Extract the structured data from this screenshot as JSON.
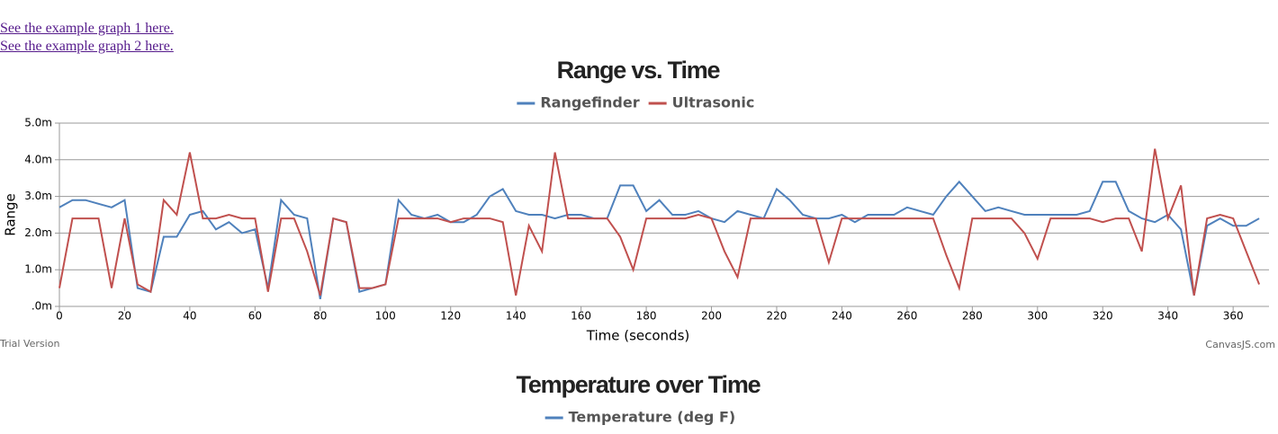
{
  "links": [
    "See the example graph 1 here.",
    "See the example graph 2 here."
  ],
  "chart_data": [
    {
      "type": "line",
      "title": "Range vs. Time",
      "x_label": "Time (seconds)",
      "y_label": "Range",
      "credit_left": "Trial Version",
      "credit_right": "CanvasJS.com",
      "xlim": [
        0,
        371
      ],
      "xticks": [
        0,
        20,
        40,
        60,
        80,
        100,
        120,
        140,
        160,
        180,
        200,
        220,
        240,
        260,
        280,
        300,
        320,
        340,
        360
      ],
      "ylim": [
        0,
        5
      ],
      "yticks": [
        {
          "value": 0,
          "label": ".0m"
        },
        {
          "value": 1,
          "label": "1.0m"
        },
        {
          "value": 2,
          "label": "2.0m"
        },
        {
          "value": 3,
          "label": "3.0m"
        },
        {
          "value": 4,
          "label": "4.0m"
        },
        {
          "value": 5,
          "label": "5.0m"
        }
      ],
      "grid": true,
      "legend": "top",
      "x": [
        0,
        4,
        8,
        12,
        16,
        20,
        24,
        28,
        32,
        36,
        40,
        44,
        48,
        52,
        56,
        60,
        64,
        68,
        72,
        76,
        80,
        84,
        88,
        92,
        96,
        100,
        104,
        108,
        112,
        116,
        120,
        124,
        128,
        132,
        136,
        140,
        144,
        148,
        152,
        156,
        160,
        164,
        168,
        172,
        176,
        180,
        184,
        188,
        192,
        196,
        200,
        204,
        208,
        212,
        216,
        220,
        224,
        228,
        232,
        236,
        240,
        244,
        248,
        252,
        256,
        260,
        264,
        268,
        272,
        276,
        280,
        284,
        288,
        292,
        296,
        300,
        304,
        308,
        312,
        316,
        320,
        324,
        328,
        332,
        336,
        340,
        344,
        348,
        352,
        356,
        360,
        364,
        368
      ],
      "series": [
        {
          "name": "Rangefinder",
          "color": "#4f81bc",
          "values": [
            2.7,
            2.9,
            2.9,
            2.8,
            2.7,
            2.9,
            0.5,
            0.4,
            1.9,
            1.9,
            2.5,
            2.6,
            2.1,
            2.3,
            2.0,
            2.1,
            0.5,
            2.9,
            2.5,
            2.4,
            0.2,
            2.4,
            2.3,
            0.4,
            0.5,
            0.6,
            2.9,
            2.5,
            2.4,
            2.5,
            2.3,
            2.3,
            2.5,
            3.0,
            3.2,
            2.6,
            2.5,
            2.5,
            2.4,
            2.5,
            2.5,
            2.4,
            2.4,
            3.3,
            3.3,
            2.6,
            2.9,
            2.5,
            2.5,
            2.6,
            2.4,
            2.3,
            2.6,
            2.5,
            2.4,
            3.2,
            2.9,
            2.5,
            2.4,
            2.4,
            2.5,
            2.3,
            2.5,
            2.5,
            2.5,
            2.7,
            2.6,
            2.5,
            3.0,
            3.4,
            3.0,
            2.6,
            2.7,
            2.6,
            2.5,
            2.5,
            2.5,
            2.5,
            2.5,
            2.6,
            3.4,
            3.4,
            2.6,
            2.4,
            2.3,
            2.5,
            2.1,
            0.3,
            2.2,
            2.4,
            2.2,
            2.2,
            2.4
          ]
        },
        {
          "name": "Ultrasonic",
          "color": "#c0504e",
          "values": [
            0.5,
            2.4,
            2.4,
            2.4,
            0.5,
            2.4,
            0.6,
            0.4,
            2.9,
            2.5,
            4.2,
            2.4,
            2.4,
            2.5,
            2.4,
            2.4,
            0.4,
            2.4,
            2.4,
            1.5,
            0.3,
            2.4,
            2.3,
            0.5,
            0.5,
            0.6,
            2.4,
            2.4,
            2.4,
            2.4,
            2.3,
            2.4,
            2.4,
            2.4,
            2.3,
            0.3,
            2.2,
            1.5,
            4.2,
            2.4,
            2.4,
            2.4,
            2.4,
            1.9,
            1.0,
            2.4,
            2.4,
            2.4,
            2.4,
            2.5,
            2.4,
            1.5,
            0.8,
            2.4,
            2.4,
            2.4,
            2.4,
            2.4,
            2.4,
            1.2,
            2.4,
            2.4,
            2.4,
            2.4,
            2.4,
            2.4,
            2.4,
            2.4,
            1.4,
            0.5,
            2.4,
            2.4,
            2.4,
            2.4,
            2.0,
            1.3,
            2.4,
            2.4,
            2.4,
            2.4,
            2.3,
            2.4,
            2.4,
            1.5,
            4.3,
            2.4,
            3.3,
            0.3,
            2.4,
            2.5,
            2.4,
            1.5,
            0.6
          ]
        }
      ]
    },
    {
      "type": "line",
      "title": "Temperature over Time",
      "legend": "top",
      "series": [
        {
          "name": "Temperature (deg F)",
          "color": "#4f81bc"
        }
      ]
    }
  ]
}
